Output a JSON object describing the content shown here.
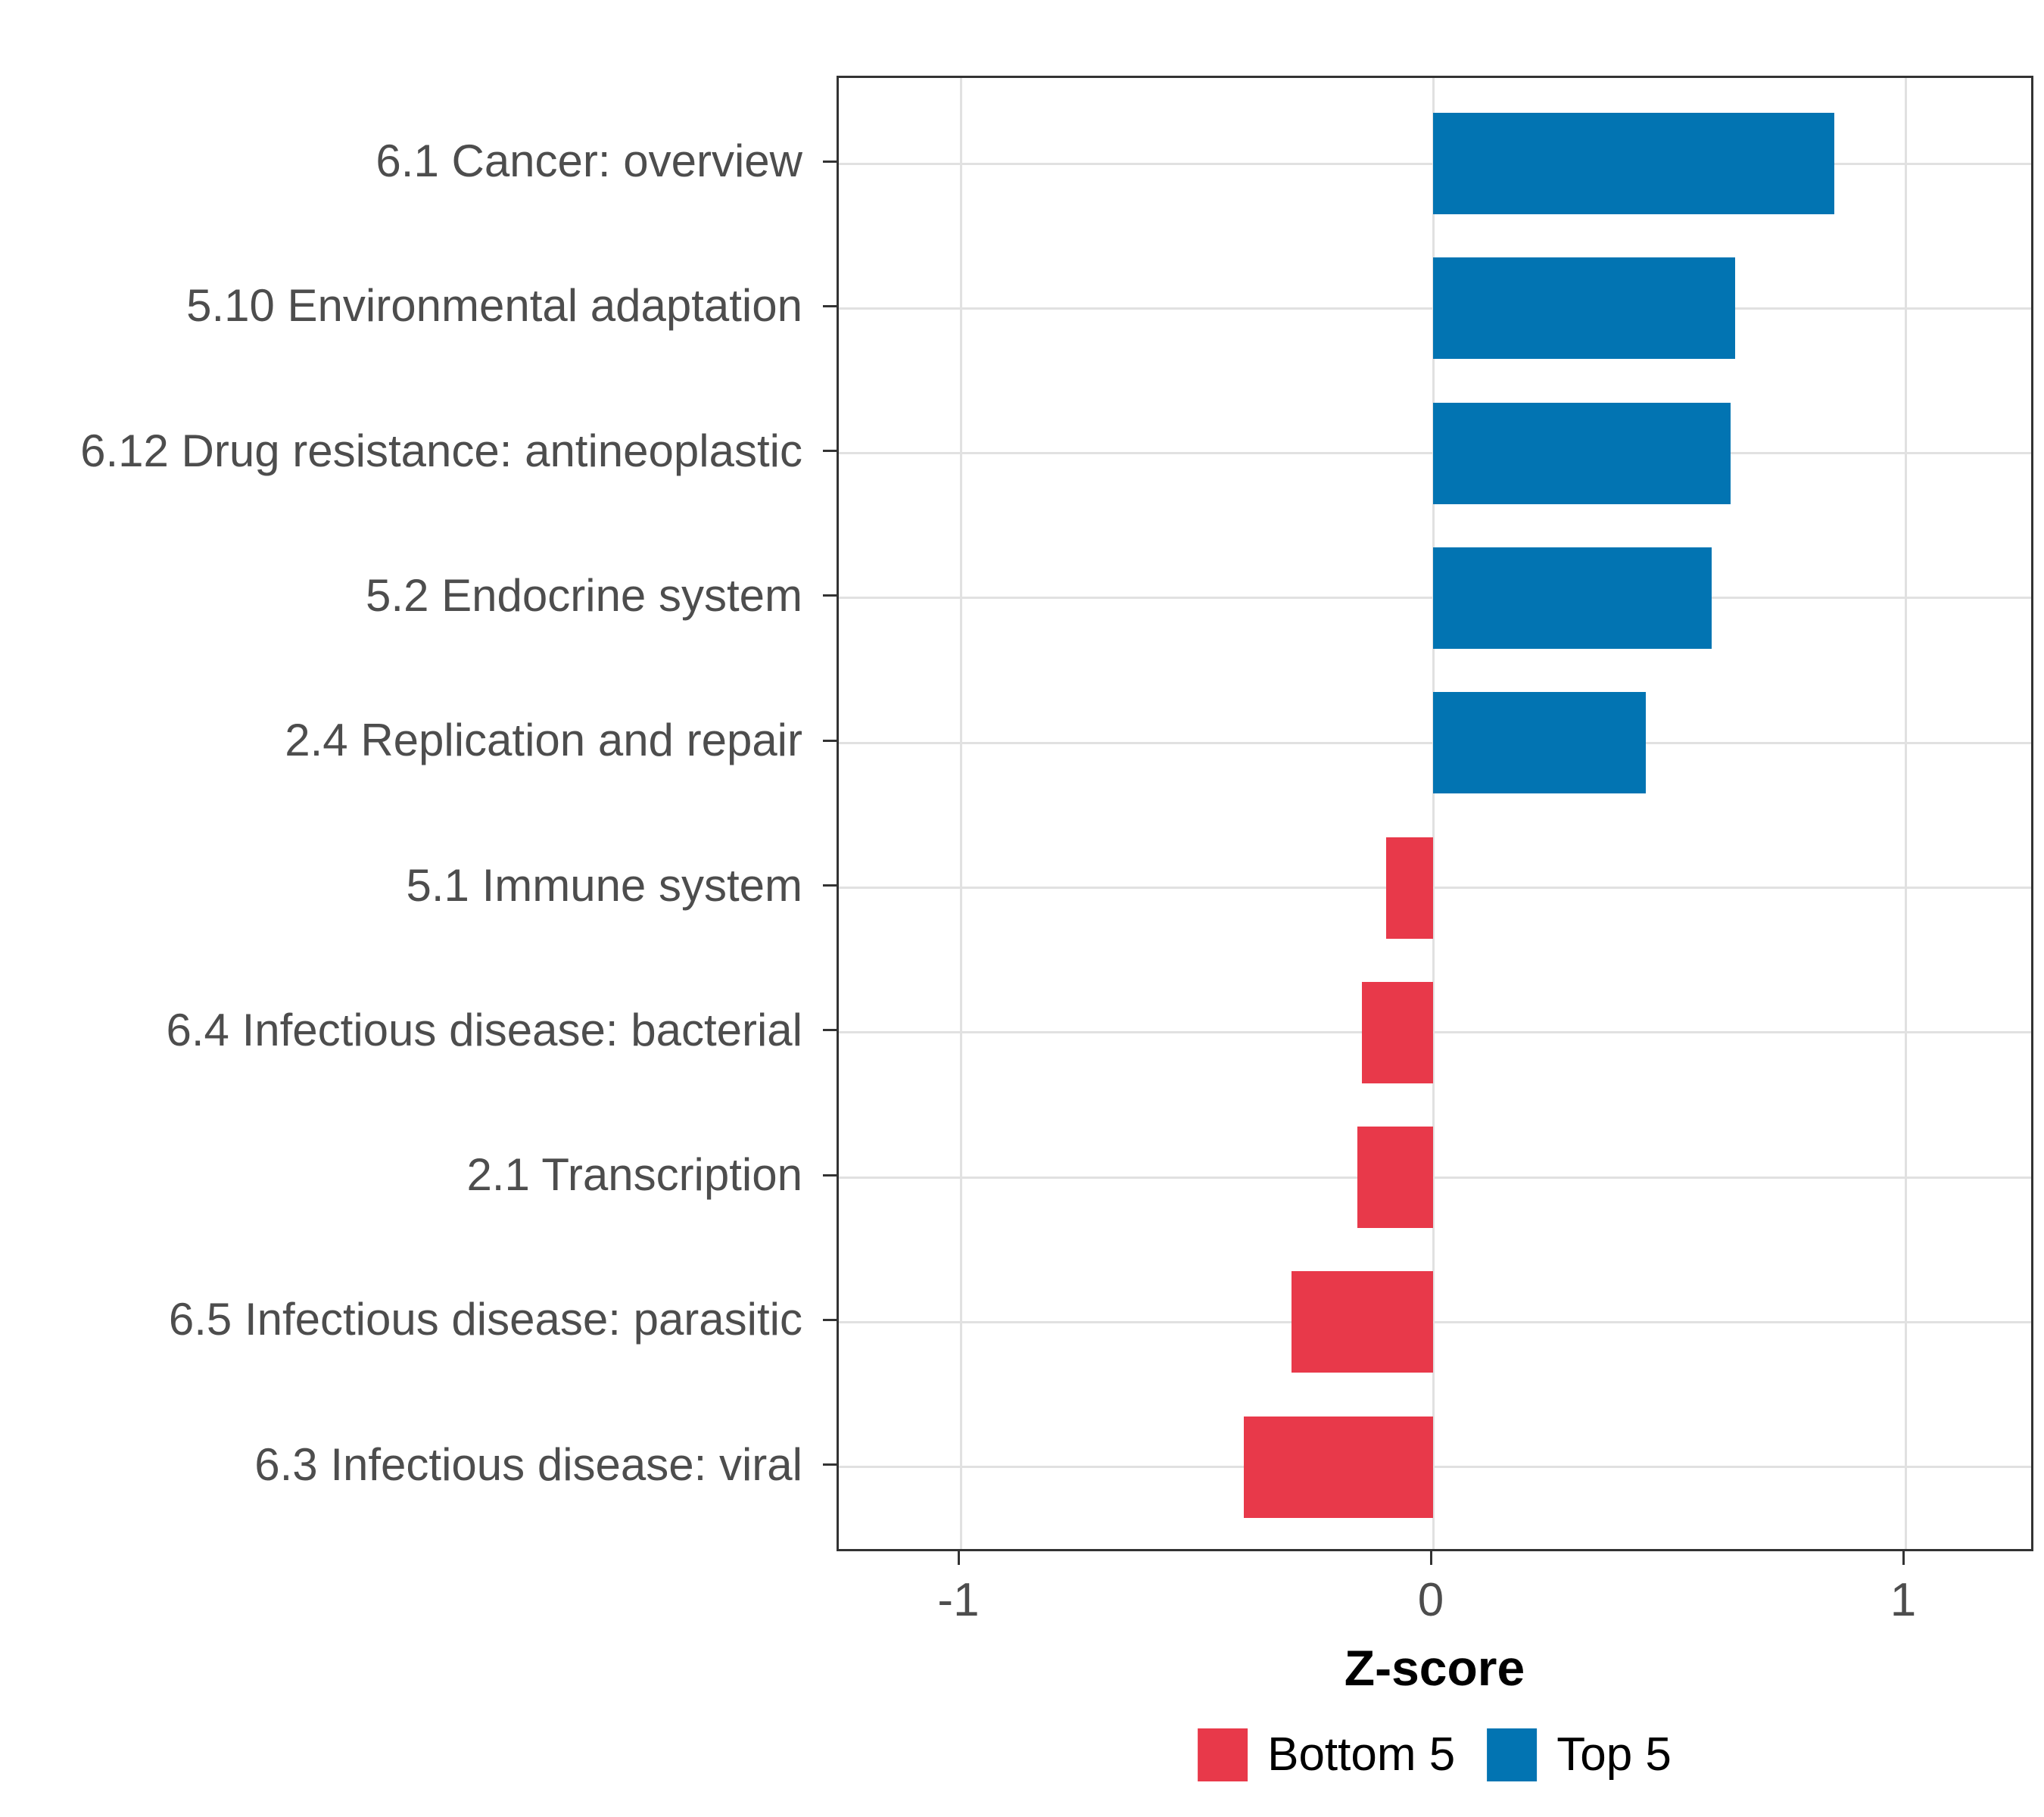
{
  "chart_data": {
    "type": "bar",
    "orientation": "horizontal",
    "title": "",
    "xlabel": "Z-score",
    "ylabel": "",
    "categories": [
      "6.1 Cancer: overview",
      "5.10 Environmental adaptation",
      "6.12 Drug resistance: antineoplastic",
      "5.2 Endocrine system",
      "2.4 Replication and repair",
      "5.1 Immune system",
      "6.4 Infectious disease: bacterial",
      "2.1 Transcription",
      "6.5 Infectious disease: parasitic",
      "6.3 Infectious disease: viral"
    ],
    "values": [
      0.85,
      0.64,
      0.63,
      0.59,
      0.45,
      -0.1,
      -0.15,
      -0.16,
      -0.3,
      -0.4
    ],
    "groups": [
      "Top 5",
      "Top 5",
      "Top 5",
      "Top 5",
      "Top 5",
      "Bottom 5",
      "Bottom 5",
      "Bottom 5",
      "Bottom 5",
      "Bottom 5"
    ],
    "colors": {
      "Top 5": "#0274B2",
      "Bottom 5": "#E8394A"
    },
    "x_ticks": [
      -1,
      0,
      1
    ],
    "x_tick_labels": [
      "-1",
      "0",
      "1"
    ],
    "xlim": [
      -1.26,
      1.28
    ],
    "grid": "major-only",
    "gridline_color": "#E1E1E1",
    "axis_line_color": "#333333",
    "axis_text_color": "#4D4D4D",
    "bar_relative_height": 0.7,
    "legend": {
      "position": "bottom",
      "entries": [
        {
          "label": "Bottom 5",
          "color": "#E8394A"
        },
        {
          "label": "Top 5",
          "color": "#0274B2"
        }
      ]
    }
  }
}
